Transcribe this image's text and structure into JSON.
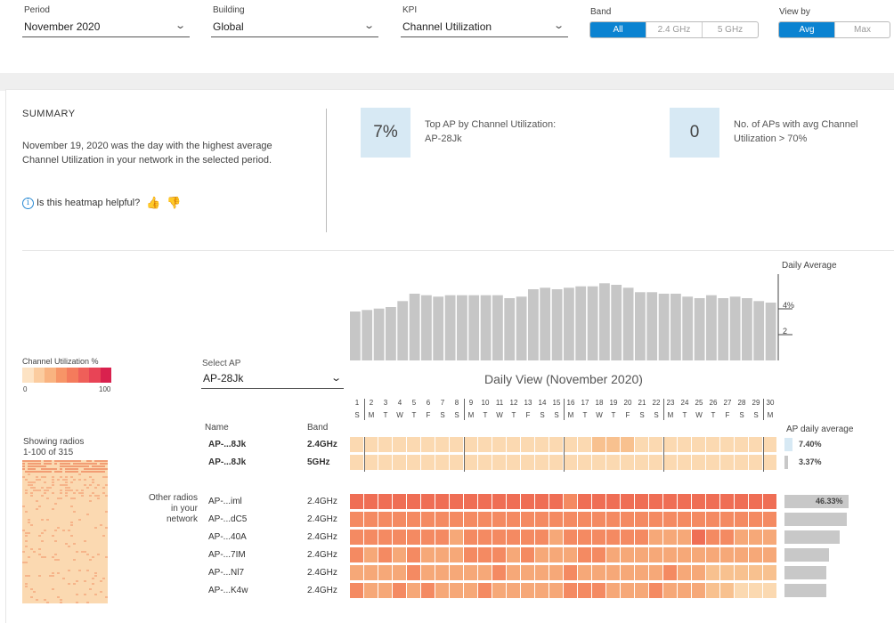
{
  "filters": {
    "period": {
      "label": "Period",
      "value": "November 2020"
    },
    "building": {
      "label": "Building",
      "value": "Global"
    },
    "kpi": {
      "label": "KPI",
      "value": "Channel Utilization"
    },
    "band": {
      "label": "Band",
      "options": [
        "All",
        "2.4 GHz",
        "5 GHz"
      ],
      "selected": "All"
    },
    "view_by": {
      "label": "View by",
      "options": [
        "Avg",
        "Max"
      ],
      "selected": "Avg"
    }
  },
  "summary": {
    "title": "SUMMARY",
    "text": "November 19, 2020 was the day with the highest average Channel Utilization in your network in the selected period.",
    "helpful_prompt": "Is this heatmap helpful?",
    "info_icon": "i",
    "thumbs_up_icon": "👍",
    "thumbs_down_icon": "👎",
    "kpi1": {
      "value": "7%",
      "line1": "Top AP by Channel Utilization:",
      "line2": "AP-28Jk"
    },
    "kpi2": {
      "value": "0",
      "line1": "No. of APs with avg Channel",
      "line2": "Utilization > 70%"
    }
  },
  "legend": {
    "title": "Channel Utilization %",
    "min": "0",
    "max": "100",
    "colors": [
      "#fde3c4",
      "#fbcc9f",
      "#f9b380",
      "#f79567",
      "#f47b5c",
      "#ef5f59",
      "#e84456",
      "#d9214e"
    ]
  },
  "showing": {
    "line1": "Showing radios",
    "line2": "1-100 of 315"
  },
  "select_ap": {
    "label": "Select AP",
    "value": "AP-28Jk"
  },
  "daily_average": {
    "label": "Daily Average",
    "ticks": [
      "4%",
      "2"
    ],
    "values": [
      3.3,
      3.4,
      3.5,
      3.6,
      4.0,
      4.5,
      4.4,
      4.3,
      4.4,
      4.4,
      4.4,
      4.4,
      4.4,
      4.2,
      4.3,
      4.8,
      4.9,
      4.8,
      4.9,
      5.0,
      5.0,
      5.2,
      5.1,
      4.9,
      4.6,
      4.6,
      4.5,
      4.5,
      4.3,
      4.2,
      4.4,
      4.2,
      4.3,
      4.2,
      4.0,
      3.9
    ],
    "ylim": [
      0,
      6.3
    ]
  },
  "daily_view": {
    "title": "Daily View (November 2020)",
    "days": [
      "1",
      "2",
      "3",
      "4",
      "5",
      "6",
      "7",
      "8",
      "9",
      "10",
      "11",
      "12",
      "13",
      "14",
      "15",
      "16",
      "17",
      "18",
      "19",
      "20",
      "21",
      "22",
      "23",
      "24",
      "25",
      "26",
      "27",
      "28",
      "29",
      "30"
    ],
    "weekdays": [
      "S",
      "M",
      "T",
      "W",
      "T",
      "F",
      "S",
      "S",
      "M",
      "T",
      "W",
      "T",
      "F",
      "S",
      "S",
      "M",
      "T",
      "W",
      "T",
      "F",
      "S",
      "S",
      "M",
      "T",
      "W",
      "T",
      "F",
      "S",
      "S",
      "M"
    ]
  },
  "columns": {
    "name": "Name",
    "band": "Band",
    "ap_daily_average": "AP daily average"
  },
  "selected_rows": [
    {
      "name": "AP-...8Jk",
      "band": "2.4GHz",
      "avg_label": "7.40%",
      "avg": 7.4,
      "levels": [
        1,
        1,
        1,
        1,
        1,
        1,
        1,
        1,
        1,
        1,
        1,
        1,
        1,
        1,
        1,
        1,
        1,
        2,
        2,
        2,
        1,
        1,
        1,
        1,
        1,
        1,
        1,
        1,
        1,
        1
      ]
    },
    {
      "name": "AP-...8Jk",
      "band": "5GHz",
      "avg_label": "3.37%",
      "avg": 3.37,
      "levels": [
        1,
        1,
        1,
        1,
        1,
        1,
        1,
        1,
        1,
        1,
        1,
        1,
        1,
        1,
        1,
        1,
        1,
        1,
        1,
        1,
        1,
        1,
        1,
        1,
        1,
        1,
        1,
        1,
        1,
        1
      ]
    }
  ],
  "other_label": {
    "l1": "Other radios",
    "l2": "in your",
    "l3": "network"
  },
  "other_rows": [
    {
      "name": "AP-...iml",
      "band": "2.4GHz",
      "avg_label": "46.33%",
      "avg": 46.33,
      "levels": [
        5,
        5,
        5,
        5,
        5,
        5,
        5,
        5,
        5,
        5,
        5,
        5,
        5,
        5,
        5,
        4,
        5,
        5,
        5,
        5,
        5,
        5,
        5,
        5,
        5,
        5,
        5,
        5,
        5,
        5
      ]
    },
    {
      "name": "AP-...dC5",
      "band": "2.4GHz",
      "avg": 45,
      "levels": [
        4,
        4,
        4,
        4,
        4,
        4,
        4,
        4,
        4,
        4,
        4,
        4,
        4,
        4,
        4,
        4,
        4,
        4,
        4,
        4,
        4,
        4,
        4,
        4,
        4,
        4,
        4,
        4,
        4,
        4
      ]
    },
    {
      "name": "AP-...40A",
      "band": "2.4GHz",
      "avg": 40,
      "levels": [
        4,
        4,
        4,
        4,
        4,
        4,
        4,
        3,
        4,
        4,
        4,
        4,
        4,
        4,
        3,
        4,
        4,
        4,
        4,
        4,
        4,
        3,
        3,
        3,
        5,
        4,
        4,
        3,
        3,
        3
      ]
    },
    {
      "name": "AP-...7IM",
      "band": "2.4GHz",
      "avg": 32,
      "levels": [
        4,
        3,
        4,
        3,
        4,
        3,
        3,
        3,
        4,
        4,
        4,
        3,
        4,
        3,
        3,
        3,
        4,
        4,
        3,
        3,
        3,
        3,
        3,
        3,
        3,
        3,
        3,
        3,
        3,
        3
      ]
    },
    {
      "name": "AP-...Nl7",
      "band": "2.4GHz",
      "avg": 30,
      "levels": [
        3,
        3,
        3,
        3,
        4,
        3,
        3,
        3,
        3,
        3,
        4,
        3,
        3,
        3,
        3,
        4,
        3,
        3,
        3,
        3,
        3,
        3,
        4,
        3,
        3,
        2,
        2,
        2,
        2,
        2
      ]
    },
    {
      "name": "AP-...K4w",
      "band": "2.4GHz",
      "avg": 30,
      "levels": [
        4,
        3,
        3,
        4,
        3,
        4,
        3,
        3,
        3,
        4,
        3,
        3,
        3,
        3,
        3,
        4,
        4,
        4,
        3,
        3,
        3,
        4,
        3,
        3,
        3,
        2,
        2,
        1,
        1,
        1
      ]
    }
  ]
}
